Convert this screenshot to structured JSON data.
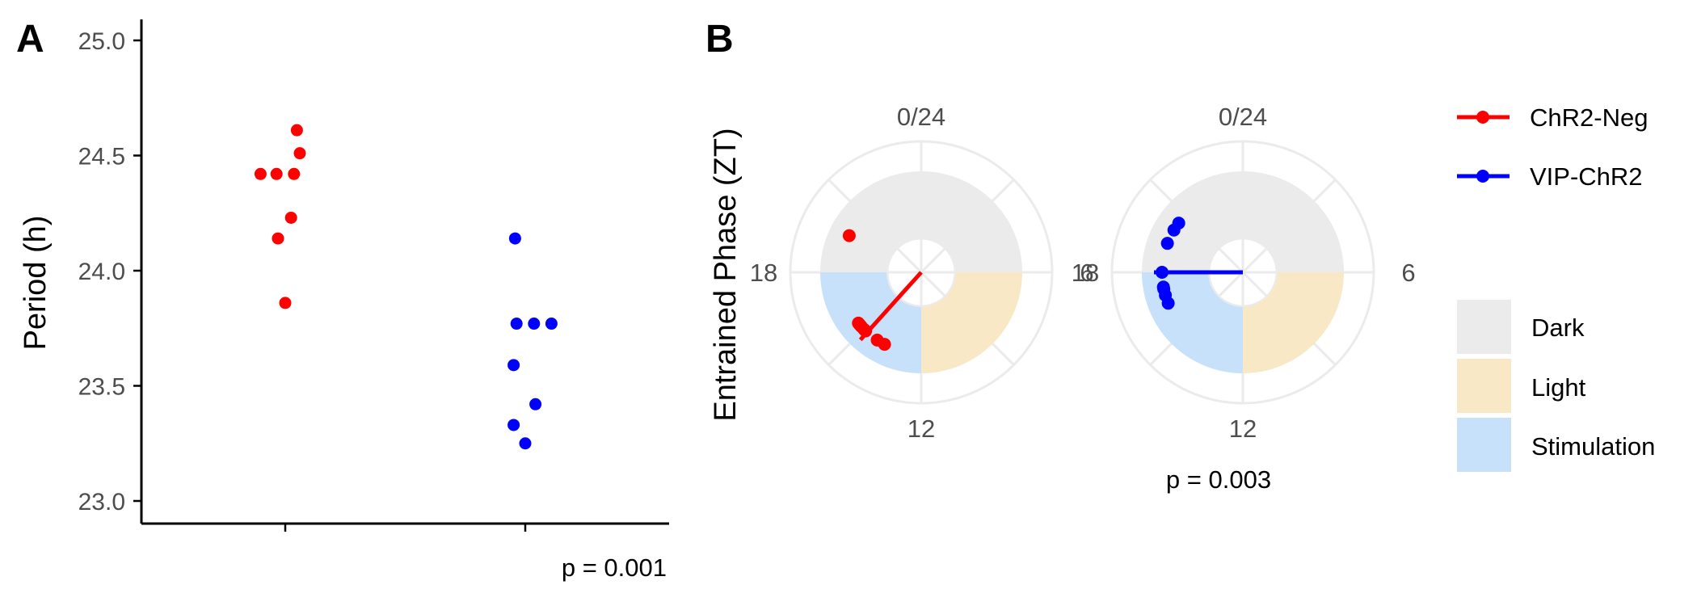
{
  "chart_data": [
    {
      "panel": "A",
      "type": "scatter",
      "ylabel": "Period (h)",
      "ylim": [
        22.95,
        25.1
      ],
      "y_ticks": [
        23.0,
        23.5,
        24.0,
        24.5,
        25.0
      ],
      "y_tick_labels": [
        "23.0",
        "23.5",
        "24.0",
        "24.5",
        "25.0"
      ],
      "annotation": "p = 0.001",
      "series": [
        {
          "color": "#ff0000",
          "group_index": 1,
          "points": [
            {
              "offset": 0.08,
              "y": 24.61
            },
            {
              "offset": -0.17,
              "y": 24.42
            },
            {
              "offset": -0.06,
              "y": 24.42
            },
            {
              "offset": 0.06,
              "y": 24.42
            },
            {
              "offset": 0.1,
              "y": 24.51
            },
            {
              "offset": 0.04,
              "y": 24.23
            },
            {
              "offset": -0.05,
              "y": 24.14
            },
            {
              "offset": 0.0,
              "y": 23.86
            }
          ]
        },
        {
          "color": "#0000ff",
          "group_index": 2,
          "points": [
            {
              "offset": -0.07,
              "y": 24.14
            },
            {
              "offset": -0.06,
              "y": 23.77
            },
            {
              "offset": 0.06,
              "y": 23.77
            },
            {
              "offset": 0.18,
              "y": 23.77
            },
            {
              "offset": -0.08,
              "y": 23.59
            },
            {
              "offset": 0.07,
              "y": 23.42
            },
            {
              "offset": -0.08,
              "y": 23.33
            },
            {
              "offset": 0.0,
              "y": 23.25
            }
          ]
        }
      ]
    },
    {
      "panel": "B",
      "type": "scatter",
      "subtype": "polar",
      "ylabel": "Entrained Phase (ZT)",
      "angle_labels": [
        "0/24",
        "6",
        "12",
        "18"
      ],
      "annotation": "p = 0.003",
      "bands": [
        {
          "name": "Dark",
          "from_zt": 18,
          "to_zt": 6,
          "color": "#ebebeb"
        },
        {
          "name": "Light",
          "from_zt": 6,
          "to_zt": 12,
          "color": "#f9e8c5"
        },
        {
          "name": "Stimulation",
          "from_zt": 12,
          "to_zt": 18,
          "color": "#c8e1fa"
        }
      ],
      "series": [
        {
          "name": "ChR2-Neg",
          "color": "#ff0000",
          "mean_phase_zt": 14.8,
          "mean_vector_length": 0.9,
          "phases_zt": [
            19.8,
            15.4,
            15.2,
            15.3,
            15.0,
            14.9,
            14.2,
            13.8
          ]
        },
        {
          "name": "VIP-ChR2",
          "color": "#0000ff",
          "mean_phase_zt": 18.0,
          "mean_vector_length": 0.88,
          "phases_zt": [
            20.1,
            20.5,
            19.4,
            18.0,
            17.3,
            17.2,
            16.9,
            16.5
          ]
        }
      ]
    }
  ],
  "legend": {
    "series": [
      "ChR2-Neg",
      "VIP-ChR2"
    ],
    "bands": [
      "Dark",
      "Light",
      "Stimulation"
    ]
  }
}
